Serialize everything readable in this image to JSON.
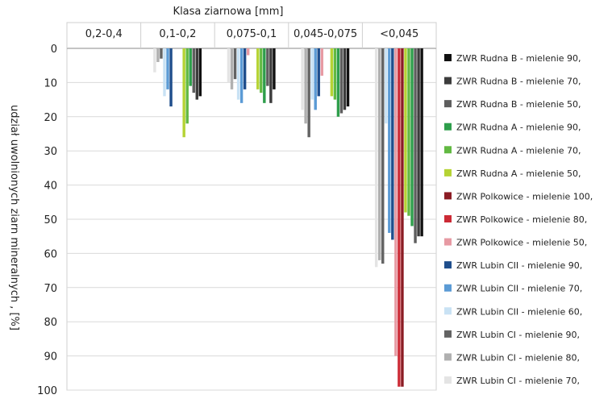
{
  "chart_data": {
    "type": "bar",
    "orientation": "vertical-downward",
    "title": "Klasa ziarnowa [mm]",
    "ylabel": "udział uwolnionych ziarn mineralnych , [%]",
    "ylim": [
      0,
      100
    ],
    "yticks": [
      0,
      10,
      20,
      30,
      40,
      50,
      60,
      70,
      80,
      90,
      100
    ],
    "y_axis_inverted": true,
    "grid": true,
    "legend_position": "right",
    "categories": [
      "0,2-0,4",
      "0,1-0,2",
      "0,075-0,1",
      "0,045-0,075",
      "<0,045"
    ],
    "series": [
      {
        "name": "ZWR Lubin CI - mielenie 70,",
        "color": "#e4e4e4",
        "values": [
          0,
          7,
          10,
          18,
          64
        ]
      },
      {
        "name": "ZWR Lubin CI - mielenie 80,",
        "color": "#b0b0b0",
        "values": [
          0,
          4,
          12,
          22,
          62
        ]
      },
      {
        "name": "ZWR Lubin CI - mielenie 90,",
        "color": "#636363",
        "values": [
          0,
          3,
          9,
          26,
          63
        ]
      },
      {
        "name": "ZWR Lubin CII - mielenie 60,",
        "color": "#c9e2f4",
        "values": [
          0,
          14,
          15,
          15,
          22
        ]
      },
      {
        "name": "ZWR Lubin CII - mielenie 70,",
        "color": "#5b9bd5",
        "values": [
          0,
          12,
          16,
          18,
          54
        ]
      },
      {
        "name": "ZWR Lubin CII - mielenie 90,",
        "color": "#1f4e8c",
        "values": [
          0,
          17,
          12,
          14,
          56
        ]
      },
      {
        "name": "ZWR Polkowice - mielenie 50,",
        "color": "#e79aa3",
        "values": [
          0,
          0,
          2,
          8,
          90
        ]
      },
      {
        "name": "ZWR Polkowice - mielenie 80,",
        "color": "#cc2a35",
        "values": [
          0,
          0,
          0,
          0,
          99
        ]
      },
      {
        "name": "ZWR Polkowice - mielenie 100,",
        "color": "#8b1c24",
        "values": [
          0,
          0,
          0,
          0,
          99
        ]
      },
      {
        "name": "ZWR Rudna A - mielenie 50,",
        "color": "#b5d334",
        "values": [
          0,
          26,
          12,
          14,
          48
        ]
      },
      {
        "name": "ZWR Rudna A - mielenie 70,",
        "color": "#62b942",
        "values": [
          0,
          22,
          13,
          15,
          49
        ]
      },
      {
        "name": "ZWR Rudna A - mielenie 90,",
        "color": "#2e9e4b",
        "values": [
          0,
          11,
          16,
          20,
          52
        ]
      },
      {
        "name": "ZWR Rudna B - mielenie 50,",
        "color": "#5e5e5e",
        "values": [
          0,
          13,
          11,
          19,
          57
        ]
      },
      {
        "name": "ZWR Rudna B - mielenie 70,",
        "color": "#3c3c3c",
        "values": [
          0,
          15,
          16,
          18,
          55
        ]
      },
      {
        "name": "ZWR Rudna B - mielenie 90,",
        "color": "#111111",
        "values": [
          0,
          14,
          12,
          17,
          55
        ]
      }
    ]
  }
}
